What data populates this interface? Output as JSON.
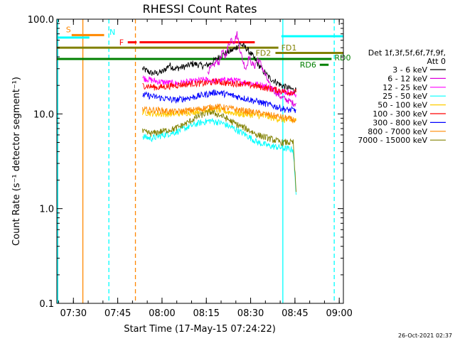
{
  "chart_data": {
    "type": "line",
    "title": "RHESSI Count Rates",
    "xlabel": "Start Time (17-May-15 07:24:22)",
    "ylabel": "Count Rate (s⁻¹ detector segment⁻¹)",
    "y_scale": "log",
    "ylim": [
      0.1,
      100.0
    ],
    "y_ticks": [
      "0.1",
      "1.0",
      "10.0",
      "100.0"
    ],
    "xlim_minutes": [
      0,
      97
    ],
    "x_ticks": [
      "07:30",
      "07:45",
      "08:00",
      "08:15",
      "08:30",
      "08:45",
      "09:00"
    ],
    "x_tick_minutes": [
      5.6,
      20.6,
      35.6,
      50.6,
      65.6,
      80.6,
      95.6
    ],
    "legend_title": [
      "Det 1f,3f,5f,6f,7f,9f,",
      "Att 0"
    ],
    "legend_position": "right",
    "series": [
      {
        "name": "3 - 6 keV",
        "color": "#000000",
        "x": [
          29,
          32,
          34,
          36,
          38,
          40,
          42,
          44,
          46,
          48,
          50,
          52,
          54,
          56,
          58,
          60,
          62,
          64,
          66,
          68,
          70,
          72,
          74,
          76,
          78,
          80,
          81
        ],
        "values": [
          30,
          27,
          27,
          28,
          33,
          30,
          31,
          32,
          34,
          33,
          32,
          34,
          38,
          42,
          45,
          48,
          55,
          50,
          42,
          34,
          28,
          24,
          22,
          20,
          19,
          18,
          18
        ]
      },
      {
        "name": "6 - 12 keV",
        "color": "#dd00dd",
        "x": [
          51,
          52,
          53,
          54,
          55,
          56,
          57,
          58,
          59,
          60,
          61,
          62,
          63,
          64,
          65,
          66,
          67,
          68,
          69,
          70,
          71,
          72,
          74,
          76,
          78,
          80,
          81
        ],
        "values": [
          28,
          30,
          32,
          36,
          35,
          46,
          40,
          52,
          62,
          58,
          70,
          48,
          36,
          30,
          40,
          34,
          32,
          38,
          34,
          28,
          24,
          20,
          17,
          15,
          14,
          13,
          13
        ]
      },
      {
        "name": "12 - 25 keV",
        "color": "#ff00ff",
        "x": [
          29,
          34,
          40,
          46,
          50,
          54,
          58,
          62,
          66,
          70,
          74,
          78,
          81
        ],
        "values": [
          24,
          22,
          21,
          22,
          23,
          22,
          23,
          22,
          21,
          20,
          18,
          17,
          16
        ]
      },
      {
        "name": "25 - 50 keV",
        "color": "#00ffff",
        "x": [
          29,
          32,
          36,
          40,
          44,
          48,
          52,
          56,
          60,
          64,
          68,
          72,
          76,
          80,
          81
        ],
        "values": [
          5.8,
          5.5,
          6.0,
          6.4,
          7.2,
          8.0,
          8.5,
          8.0,
          7.0,
          6.0,
          5.0,
          4.6,
          4.4,
          4.2,
          1.4
        ]
      },
      {
        "name": "50 - 100 keV",
        "color": "#ffcc00",
        "x": [
          29,
          34,
          40,
          46,
          50,
          54,
          58,
          62,
          66,
          70,
          74,
          78,
          81
        ],
        "values": [
          10.5,
          10.0,
          10.0,
          10.5,
          11.0,
          11.0,
          10.5,
          10.0,
          9.8,
          9.5,
          9.0,
          8.5,
          8.5
        ]
      },
      {
        "name": "100 - 300 keV",
        "color": "#ff0000",
        "x": [
          29,
          34,
          40,
          46,
          50,
          54,
          58,
          62,
          66,
          70,
          74,
          78,
          81
        ],
        "values": [
          20,
          19,
          20,
          21,
          21,
          22,
          21,
          21,
          20,
          19,
          18,
          17,
          17
        ]
      },
      {
        "name": "300 - 800 keV",
        "color": "#0000ff",
        "x": [
          29,
          34,
          40,
          46,
          50,
          54,
          58,
          62,
          66,
          70,
          74,
          78,
          81
        ],
        "values": [
          16,
          15,
          14,
          15,
          16,
          17,
          16,
          15,
          14,
          13,
          12,
          11,
          11
        ]
      },
      {
        "name": "800 - 7000 keV",
        "color": "#ff8800",
        "x": [
          29,
          34,
          40,
          46,
          50,
          54,
          58,
          62,
          66,
          70,
          74,
          78,
          81
        ],
        "values": [
          11,
          11,
          10.5,
          11,
          11.5,
          12,
          11.5,
          11,
          10.5,
          10,
          9.5,
          9,
          8.5
        ]
      },
      {
        "name": "7000 - 15000 keV",
        "color": "#808000",
        "x": [
          29,
          32,
          36,
          40,
          44,
          48,
          52,
          56,
          60,
          64,
          68,
          72,
          76,
          80,
          81
        ],
        "values": [
          6.5,
          6.2,
          6.6,
          7.0,
          8.0,
          9.5,
          10.5,
          9.5,
          8.0,
          7.0,
          6.0,
          5.5,
          5.0,
          5.0,
          1.5
        ]
      }
    ],
    "annotations": [
      {
        "label": "S",
        "color": "#ff8800",
        "x_start": 5,
        "x_end": 16,
        "y": 68
      },
      {
        "label": "N",
        "color": "#00ffff",
        "x_start": 0,
        "x_end": 11,
        "y": 64
      },
      {
        "label": "F",
        "color": "#ff0000",
        "x_start": 24,
        "x_end": 27,
        "y": 57
      },
      {
        "label": "",
        "color": "#ff0000",
        "x_start": 28,
        "x_end": 67,
        "y": 57
      },
      {
        "label": "FD1",
        "color": "#808000",
        "x_start": 0,
        "x_end": 75,
        "y": 50
      },
      {
        "label": "FD2",
        "color": "#808000",
        "x_start": 74,
        "x_end": 97,
        "y": 44
      },
      {
        "label": "RD0",
        "color": "#008000",
        "x_start": 0,
        "x_end": 93,
        "y": 38
      },
      {
        "label": "RD6",
        "color": "#008000",
        "x_start": 89,
        "x_end": 92,
        "y": 33
      },
      {
        "label": "",
        "color": "#00ffff",
        "x_start": 76,
        "x_end": 97,
        "y": 66
      }
    ],
    "vertical_markers": [
      {
        "x": 0.3,
        "color": "#00ffff",
        "style": "solid"
      },
      {
        "x": 8.8,
        "color": "#ff8800",
        "style": "solid"
      },
      {
        "x": 17.6,
        "color": "#00ffff",
        "style": "dashed"
      },
      {
        "x": 26.6,
        "color": "#ff8800",
        "style": "dashed"
      },
      {
        "x": 76.5,
        "color": "#00ffff",
        "style": "solid"
      },
      {
        "x": 93.9,
        "color": "#00ffff",
        "style": "dashed"
      }
    ]
  },
  "footer": {
    "timestamp": "26-Oct-2021 02:37"
  }
}
